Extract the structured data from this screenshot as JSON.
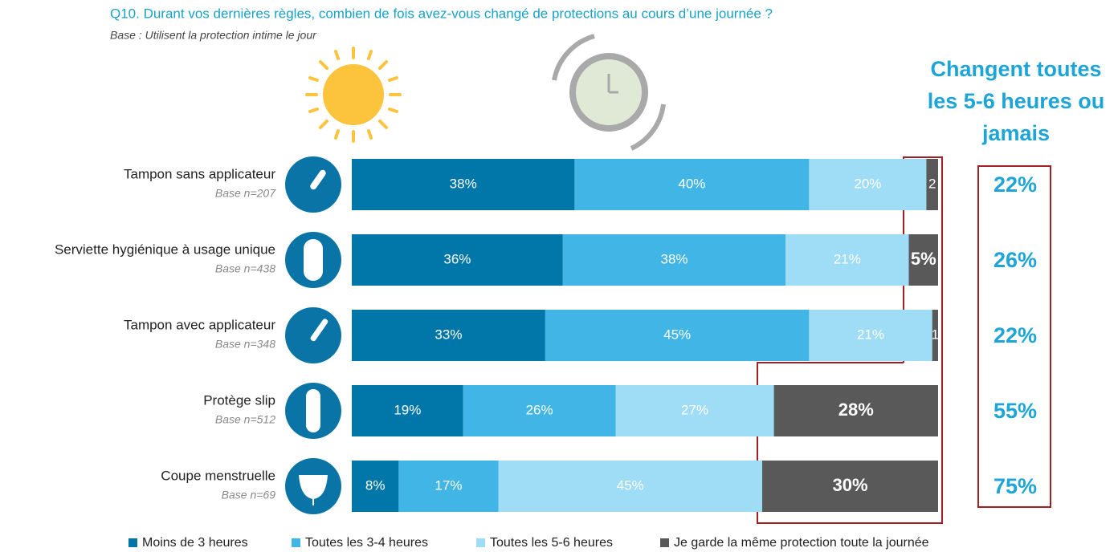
{
  "chart_data": {
    "type": "stacked-barh",
    "title": "Q10. Durant vos dernières règles, combien de fois avez-vous changé de protections au cours d’une journée ?",
    "subtitle": "Base : Utilisent la protection intime le jour",
    "categories": [
      "Tampon sans applicateur",
      "Serviette hygiénique à usage unique",
      "Tampon avec applicateur",
      "Protège slip",
      "Coupe menstruelle"
    ],
    "bases": [
      "Base n=207",
      "Base n=438",
      "Base n=348",
      "Base n=512",
      "Base n=69"
    ],
    "xlim": [
      0,
      100
    ],
    "series": [
      {
        "name": "Moins de 3 heures",
        "color": "#0077a8",
        "values": [
          38,
          36,
          33,
          19,
          8
        ],
        "value_labels": [
          "38%",
          "36%",
          "33%",
          "19%",
          "8%"
        ]
      },
      {
        "name": "Toutes les 3-4 heures",
        "color": "#41b6e6",
        "values": [
          40,
          38,
          45,
          26,
          17
        ],
        "value_labels": [
          "40%",
          "38%",
          "45%",
          "26%",
          "17%"
        ]
      },
      {
        "name": "Toutes les 5-6 heures",
        "color": "#9fdcf5",
        "values": [
          20,
          21,
          21,
          27,
          45
        ],
        "value_labels": [
          "20%",
          "21%",
          "21%",
          "27%",
          "45%"
        ]
      },
      {
        "name": "Je garde la même protection toute la journée",
        "color": "#595959",
        "values": [
          2,
          5,
          1,
          28,
          30
        ],
        "value_labels": [
          "2",
          "5%",
          "1",
          "28%",
          "30%"
        ]
      }
    ],
    "totals": {
      "title": "Changent toutes les 5-6 heures ou jamais",
      "color": "#1ea5d8",
      "values": [
        22,
        26,
        22,
        55,
        75
      ],
      "value_labels": [
        "22%",
        "26%",
        "22%",
        "55%",
        "75%"
      ]
    }
  }
}
